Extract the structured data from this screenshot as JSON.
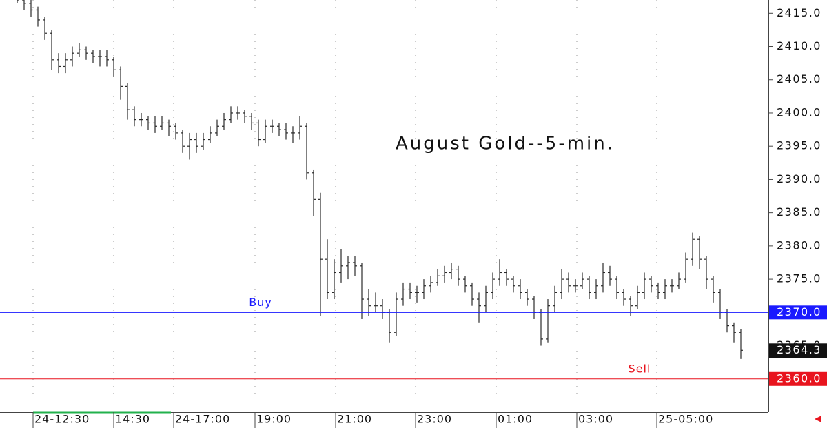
{
  "chart_data": {
    "type": "ohlc",
    "title": "August Gold--5-min.",
    "color": "#2a2a2a",
    "xlim": [
      -2.5,
      109
    ],
    "xticks": [
      {
        "value": 2.3,
        "label": "24-12:30"
      },
      {
        "value": 14,
        "label": "14:30"
      },
      {
        "value": 22.7,
        "label": "24-17:00"
      },
      {
        "value": 34.5,
        "label": "19:00"
      },
      {
        "value": 46.2,
        "label": "21:00"
      },
      {
        "value": 57.8,
        "label": "23:00"
      },
      {
        "value": 69.5,
        "label": "01:00"
      },
      {
        "value": 81.2,
        "label": "03:00"
      },
      {
        "value": 92.8,
        "label": "25-05:00"
      }
    ],
    "ylim": [
      2355,
      2417
    ],
    "yticks": [
      {
        "value": 2360,
        "label": "2360.0"
      },
      {
        "value": 2365,
        "label": "2365.0"
      },
      {
        "value": 2370,
        "label": "2370.0"
      },
      {
        "value": 2375,
        "label": "2375.0"
      },
      {
        "value": 2380,
        "label": "2380.0"
      },
      {
        "value": 2385,
        "label": "2385.0"
      },
      {
        "value": 2390,
        "label": "2390.0"
      },
      {
        "value": 2395,
        "label": "2395.0"
      },
      {
        "value": 2400,
        "label": "2400.0"
      },
      {
        "value": 2405,
        "label": "2405.0"
      },
      {
        "value": 2410,
        "label": "2410.0"
      },
      {
        "value": 2415,
        "label": "2415.0"
      }
    ],
    "grid": true,
    "open": [
      2417.5,
      2417,
      2416.5,
      2415.5,
      2414,
      2412,
      2408,
      2407,
      2408,
      2409,
      2409.5,
      2409,
      2408.5,
      2408.5,
      2408,
      2406.5,
      2404,
      2400.5,
      2399,
      2399,
      2398.5,
      2398,
      2398.5,
      2398,
      2397,
      2395,
      2396,
      2395,
      2396,
      2397,
      2398,
      2399,
      2400,
      2400,
      2399.5,
      2398.5,
      2396,
      2398,
      2398,
      2397.5,
      2397,
      2397,
      2398,
      2391,
      2387,
      2378,
      2373,
      2376,
      2377,
      2377.5,
      2377,
      2372,
      2371,
      2371,
      2370,
      2367,
      2372,
      2373.5,
      2373,
      2373,
      2374,
      2374.5,
      2375.5,
      2376,
      2376.5,
      2375,
      2374,
      2372,
      2371,
      2373,
      2375,
      2376,
      2375,
      2374,
      2373,
      2372,
      2370,
      2366,
      2371,
      2373,
      2375,
      2374,
      2374,
      2375,
      2373,
      2374,
      2376,
      2375,
      2373,
      2372,
      2371,
      2373,
      2375,
      2374,
      2373,
      2374,
      2374,
      2375,
      2378,
      2381,
      2378,
      2375,
      2373,
      2370,
      2368,
      2367
    ],
    "high": [
      2418,
      2417.5,
      2417,
      2416,
      2414.5,
      2412.5,
      2409,
      2409,
      2410,
      2410.5,
      2410,
      2409.5,
      2409.5,
      2409.5,
      2408.5,
      2407,
      2404.5,
      2401,
      2400,
      2399.5,
      2399.5,
      2399.5,
      2399,
      2398.5,
      2397.5,
      2397,
      2397,
      2397,
      2398,
      2399,
      2400,
      2401,
      2401,
      2400.5,
      2400,
      2399,
      2399,
      2399,
      2398.5,
      2398.5,
      2398,
      2399.5,
      2398.5,
      2391.5,
      2388,
      2381,
      2378,
      2379.5,
      2378.5,
      2378.5,
      2377.5,
      2373.5,
      2373,
      2372,
      2370.5,
      2373,
      2374.5,
      2374.5,
      2374,
      2375,
      2375.5,
      2376.5,
      2377,
      2377.5,
      2377,
      2375.5,
      2374.5,
      2373,
      2374,
      2376,
      2378,
      2376.5,
      2375.5,
      2375,
      2373.5,
      2372.5,
      2370.5,
      2372,
      2374,
      2376.5,
      2376,
      2375,
      2376,
      2375.5,
      2375,
      2377.5,
      2377,
      2375.5,
      2373.5,
      2372.5,
      2374,
      2376,
      2375.5,
      2374.5,
      2375,
      2375,
      2376,
      2379,
      2382,
      2381.5,
      2378.5,
      2375.5,
      2373.5,
      2370.5,
      2368.5,
      2367.5
    ],
    "low": [
      2416.5,
      2415.5,
      2414.5,
      2413,
      2411,
      2406.5,
      2406,
      2406,
      2407,
      2408.5,
      2408,
      2407.5,
      2407,
      2407,
      2405.5,
      2402,
      2399,
      2398,
      2398,
      2397.5,
      2397,
      2397.5,
      2396.5,
      2396,
      2394,
      2393,
      2394,
      2394.5,
      2395.5,
      2396.5,
      2397.5,
      2398.5,
      2399,
      2398.5,
      2397.5,
      2395,
      2395.5,
      2397,
      2396.5,
      2396,
      2395.5,
      2396,
      2390,
      2384.5,
      2369.5,
      2372,
      2372,
      2374.5,
      2375,
      2375.5,
      2369,
      2369.5,
      2370,
      2369,
      2365.5,
      2366.5,
      2371,
      2372,
      2371.5,
      2372,
      2373,
      2374,
      2374.5,
      2375,
      2374,
      2373,
      2371,
      2368.5,
      2370,
      2372,
      2374,
      2374,
      2373,
      2372,
      2371,
      2369,
      2365,
      2365.5,
      2370,
      2372,
      2373,
      2373,
      2373.5,
      2372,
      2372,
      2373,
      2374,
      2372,
      2371,
      2369.5,
      2370.5,
      2372,
      2373,
      2372,
      2372,
      2373,
      2373.5,
      2374.5,
      2377,
      2376.5,
      2373.5,
      2371.5,
      2369,
      2367,
      2365.5,
      2363
    ],
    "close": [
      2417,
      2416.5,
      2415.5,
      2414,
      2412,
      2408,
      2407,
      2408,
      2409,
      2409.5,
      2409,
      2408.5,
      2408.5,
      2408,
      2406.5,
      2404,
      2400.5,
      2399,
      2399,
      2398.5,
      2398,
      2398.5,
      2398,
      2397,
      2395,
      2396,
      2395,
      2396,
      2397,
      2398,
      2399,
      2400,
      2400,
      2399.5,
      2398.5,
      2396,
      2398,
      2398,
      2397.5,
      2397,
      2397,
      2398,
      2391,
      2387,
      2378,
      2373,
      2376,
      2377,
      2377.5,
      2377,
      2372,
      2371,
      2371,
      2370,
      2367,
      2372,
      2373.5,
      2373,
      2373,
      2374,
      2374.5,
      2375.5,
      2376,
      2376.5,
      2375,
      2374,
      2372,
      2371,
      2373,
      2375,
      2376,
      2375,
      2374,
      2373,
      2372,
      2370,
      2366,
      2371,
      2373,
      2375,
      2374,
      2374,
      2375,
      2373,
      2374,
      2376,
      2375,
      2373,
      2372,
      2371,
      2373,
      2375,
      2374,
      2373,
      2374,
      2374,
      2375,
      2378,
      2381,
      2378,
      2375,
      2373,
      2370,
      2368,
      2367,
      2364.3
    ],
    "lines": [
      {
        "name": "Buy",
        "value": 2370,
        "value_label": "2370.0",
        "color": "#1a1aff"
      },
      {
        "name": "Sell",
        "value": 2360,
        "value_label": "2360.0",
        "color": "#e8141e"
      }
    ]
  }
}
